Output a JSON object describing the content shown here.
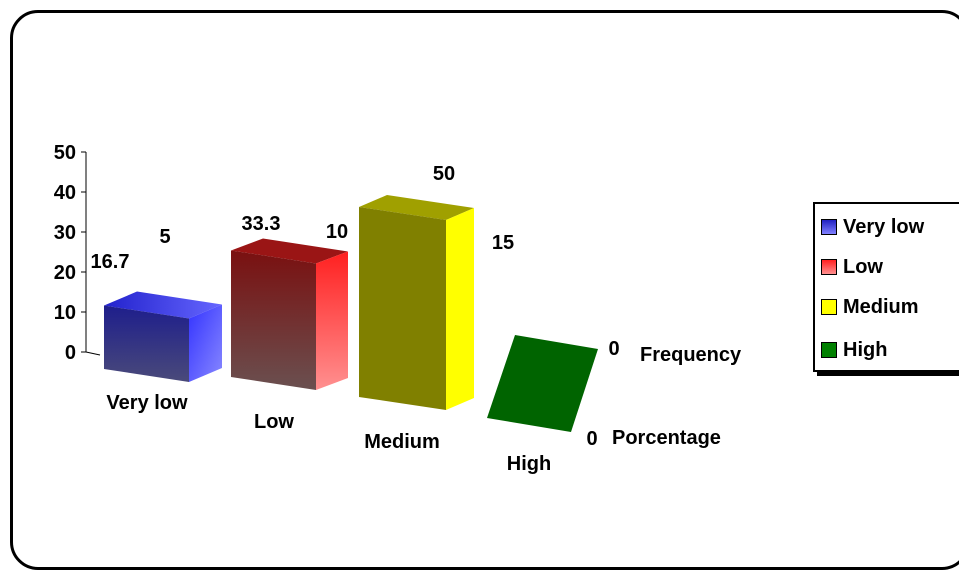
{
  "chart_data": {
    "type": "bar",
    "categories": [
      "Very low",
      "Low",
      "Medium",
      "High"
    ],
    "series": [
      {
        "name": "Frequency",
        "values": [
          5,
          10,
          15,
          0
        ]
      },
      {
        "name": "Porcentage",
        "values": [
          16.7,
          33.3,
          50,
          0
        ]
      }
    ],
    "value_labels": {
      "Frequency": [
        "5",
        "10",
        "15",
        "0"
      ],
      "Porcentage": [
        "16.7",
        "33.3",
        "50",
        "0"
      ]
    },
    "y_ticks": [
      "0",
      "10",
      "20",
      "30",
      "40",
      "50"
    ],
    "ylim": [
      0,
      50
    ],
    "legend": {
      "position": "right",
      "entries": [
        "Very low",
        "Low",
        "Medium",
        "High"
      ]
    },
    "colors": {
      "Very low": "#3a3aa8",
      "Low": "#8b1a1a",
      "Medium": "#808000",
      "High": "#006400"
    },
    "style": "3d",
    "grid": false
  }
}
